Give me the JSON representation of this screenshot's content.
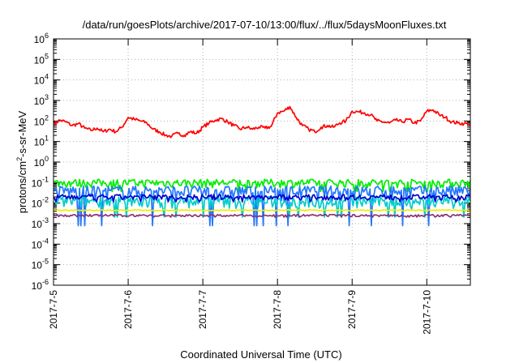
{
  "chart_data": {
    "type": "line",
    "title": "/data/run/goesPlots/archive/2017-07-10/13:00/flux/../flux/5daysMoonFluxes.txt",
    "xlabel": "Coordinated Universal Time (UTC)",
    "ylabel_parts": {
      "base": "protons/cm",
      "sup": "2",
      "rest": "-s-sr-MeV"
    },
    "y_scale": "log",
    "ylim": [
      1e-06,
      1000000.0
    ],
    "y_ticks": [
      {
        "value": -6,
        "base": "10",
        "exp": "-6"
      },
      {
        "value": -5,
        "base": "10",
        "exp": "-5"
      },
      {
        "value": -4,
        "base": "10",
        "exp": "-4"
      },
      {
        "value": -3,
        "base": "10",
        "exp": "-3"
      },
      {
        "value": -2,
        "base": "10",
        "exp": "-2"
      },
      {
        "value": -1,
        "base": "10",
        "exp": "-1"
      },
      {
        "value": 0,
        "base": "10",
        "exp": "0"
      },
      {
        "value": 1,
        "base": "10",
        "exp": "1"
      },
      {
        "value": 2,
        "base": "10",
        "exp": "2"
      },
      {
        "value": 3,
        "base": "10",
        "exp": "3"
      },
      {
        "value": 4,
        "base": "10",
        "exp": "4"
      },
      {
        "value": 5,
        "base": "10",
        "exp": "5"
      },
      {
        "value": 6,
        "base": "10",
        "exp": "6"
      }
    ],
    "xlim": [
      "2017-07-05",
      "2017-07-10 14:00"
    ],
    "x_ticks": [
      {
        "date": "2017-07-05",
        "label": "2017-7-5"
      },
      {
        "date": "2017-07-06",
        "label": "2017-7-6"
      },
      {
        "date": "2017-07-07",
        "label": "2017-7-7"
      },
      {
        "date": "2017-07-08",
        "label": "2017-7-8"
      },
      {
        "date": "2017-07-09",
        "label": "2017-7-9"
      },
      {
        "date": "2017-07-10",
        "label": "2017-7-10"
      }
    ],
    "grid": true,
    "series": [
      {
        "color": "#ff0000",
        "points": [
          [
            "2017-07-05 00:00",
            70
          ],
          [
            "2017-07-05 02:00",
            110
          ],
          [
            "2017-07-05 04:00",
            90
          ],
          [
            "2017-07-05 06:00",
            60
          ],
          [
            "2017-07-05 08:00",
            75
          ],
          [
            "2017-07-05 10:00",
            45
          ],
          [
            "2017-07-05 12:00",
            35
          ],
          [
            "2017-07-05 14:00",
            45
          ],
          [
            "2017-07-05 16:00",
            30
          ],
          [
            "2017-07-05 18:00",
            40
          ],
          [
            "2017-07-05 20:00",
            30
          ],
          [
            "2017-07-05 22:00",
            50
          ],
          [
            "2017-07-06 00:00",
            150
          ],
          [
            "2017-07-06 02:00",
            120
          ],
          [
            "2017-07-06 04:00",
            100
          ],
          [
            "2017-07-06 06:00",
            80
          ],
          [
            "2017-07-06 08:00",
            40
          ],
          [
            "2017-07-06 10:00",
            30
          ],
          [
            "2017-07-06 12:00",
            20
          ],
          [
            "2017-07-06 14:00",
            18
          ],
          [
            "2017-07-06 16:00",
            25
          ],
          [
            "2017-07-06 18:00",
            20
          ],
          [
            "2017-07-06 20:00",
            30
          ],
          [
            "2017-07-06 22:00",
            25
          ],
          [
            "2017-07-07 00:00",
            50
          ],
          [
            "2017-07-07 02:00",
            80
          ],
          [
            "2017-07-07 04:00",
            110
          ],
          [
            "2017-07-07 06:00",
            130
          ],
          [
            "2017-07-07 08:00",
            90
          ],
          [
            "2017-07-07 10:00",
            60
          ],
          [
            "2017-07-07 12:00",
            40
          ],
          [
            "2017-07-07 14:00",
            50
          ],
          [
            "2017-07-07 16:00",
            40
          ],
          [
            "2017-07-07 18:00",
            50
          ],
          [
            "2017-07-07 20:00",
            45
          ],
          [
            "2017-07-07 22:00",
            55
          ],
          [
            "2017-07-08 00:00",
            250
          ],
          [
            "2017-07-08 02:00",
            300
          ],
          [
            "2017-07-08 04:00",
            500
          ],
          [
            "2017-07-08 06:00",
            150
          ],
          [
            "2017-07-08 08:00",
            60
          ],
          [
            "2017-07-08 10:00",
            40
          ],
          [
            "2017-07-08 12:00",
            30
          ],
          [
            "2017-07-08 14:00",
            50
          ],
          [
            "2017-07-08 16:00",
            60
          ],
          [
            "2017-07-08 18:00",
            50
          ],
          [
            "2017-07-08 20:00",
            80
          ],
          [
            "2017-07-08 22:00",
            100
          ],
          [
            "2017-07-09 00:00",
            300
          ],
          [
            "2017-07-09 02:00",
            280
          ],
          [
            "2017-07-09 04:00",
            250
          ],
          [
            "2017-07-09 06:00",
            200
          ],
          [
            "2017-07-09 08:00",
            100
          ],
          [
            "2017-07-09 10:00",
            90
          ],
          [
            "2017-07-09 12:00",
            80
          ],
          [
            "2017-07-09 14:00",
            110
          ],
          [
            "2017-07-09 16:00",
            90
          ],
          [
            "2017-07-09 18:00",
            120
          ],
          [
            "2017-07-09 20:00",
            80
          ],
          [
            "2017-07-09 22:00",
            100
          ],
          [
            "2017-07-10 00:00",
            300
          ],
          [
            "2017-07-10 02:00",
            350
          ],
          [
            "2017-07-10 04:00",
            200
          ],
          [
            "2017-07-10 06:00",
            150
          ],
          [
            "2017-07-10 08:00",
            90
          ],
          [
            "2017-07-10 10:00",
            80
          ],
          [
            "2017-07-10 12:00",
            75
          ],
          [
            "2017-07-10 14:00",
            70
          ]
        ]
      },
      {
        "color": "#00ee00",
        "level": 0.1,
        "noise_pct": 45
      },
      {
        "color": "#2277ff",
        "level": 0.04,
        "noise_pct": 70
      },
      {
        "color": "#00cccc",
        "level": 0.013,
        "noise_pct": 60
      },
      {
        "color": "#0000cc",
        "level": 0.02,
        "noise_pct": 30
      },
      {
        "color": "#eeee00",
        "level": 0.0045,
        "noise_pct": 5
      },
      {
        "color": "#883377",
        "level": 0.0025,
        "noise_pct": 12
      }
    ]
  }
}
